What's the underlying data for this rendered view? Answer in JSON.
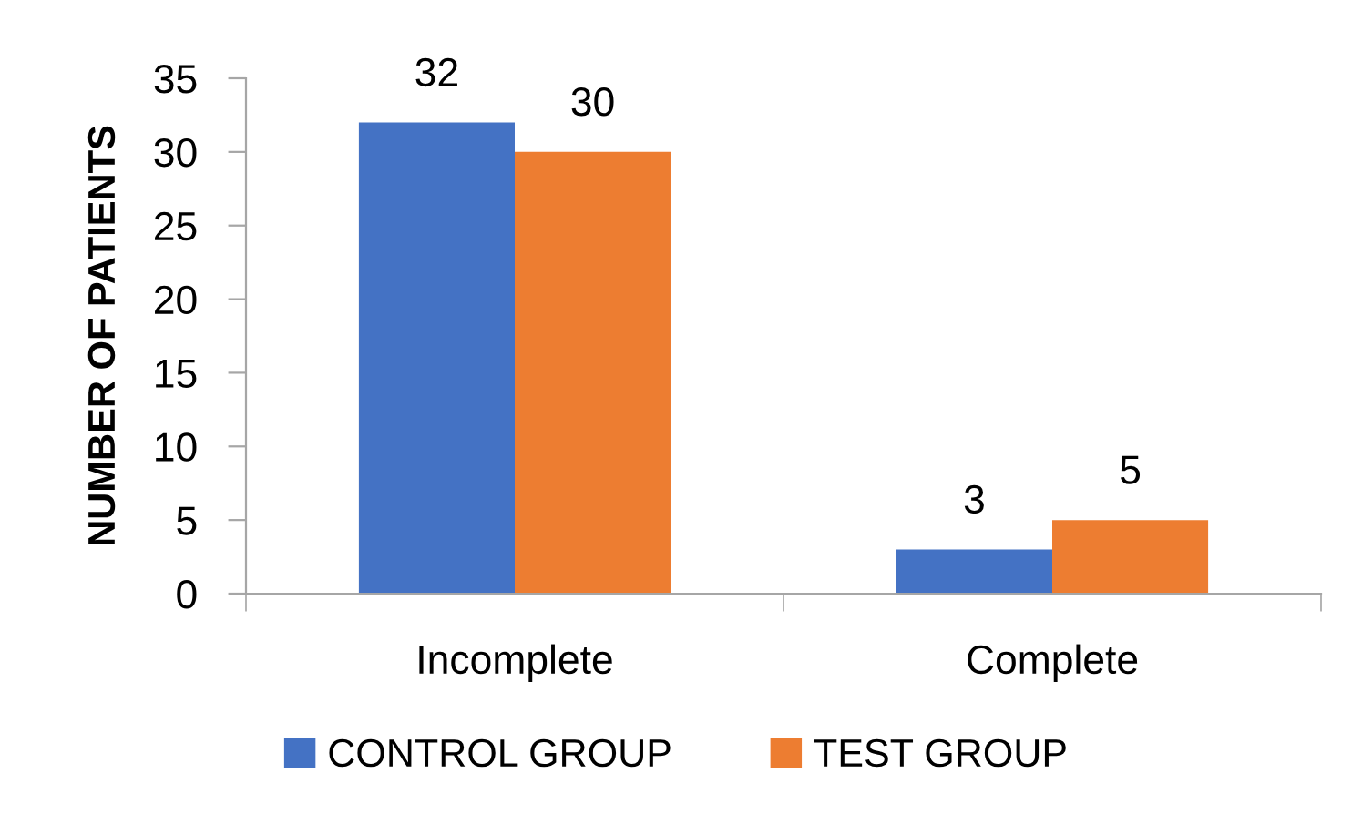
{
  "chart_data": {
    "type": "bar",
    "ylabel": "NUMBER OF PATIENTS",
    "categories": [
      "Incomplete",
      "Complete"
    ],
    "series": [
      {
        "name": "CONTROL GROUP",
        "color": "#4472c4",
        "values": [
          32,
          3
        ]
      },
      {
        "name": "TEST GROUP",
        "color": "#ed7d31",
        "values": [
          30,
          5
        ]
      }
    ],
    "ylim": [
      0,
      35
    ],
    "yticks": [
      0,
      5,
      10,
      15,
      20,
      25,
      30,
      35
    ],
    "data_labels": true,
    "grid": false,
    "legend": "bottom"
  }
}
